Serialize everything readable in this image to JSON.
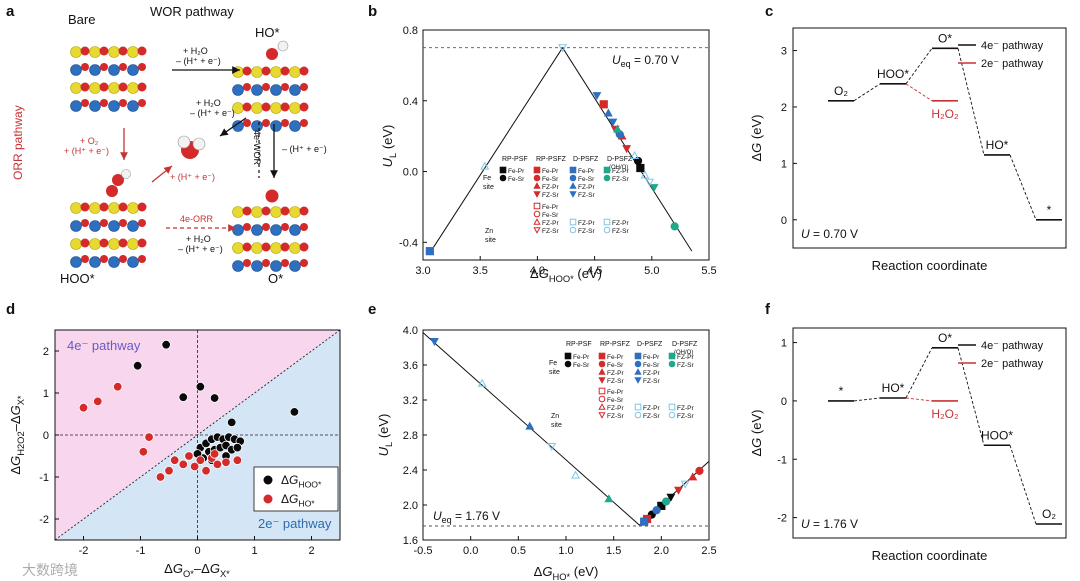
{
  "panel_labels": [
    "a",
    "b",
    "c",
    "d",
    "e",
    "f"
  ],
  "scheme": {
    "title": "WOR pathway",
    "orr_label": "ORR pathway",
    "states": {
      "bare": "Bare",
      "ho": "HO*",
      "hoo": "HOO*",
      "o": "O*"
    },
    "steps": {
      "top": [
        "+ H₂O",
        "– (H⁺ + e⁻)"
      ],
      "mid": [
        "+ H₂O",
        "– (H⁺ + e⁻)"
      ],
      "left": [
        "+ O₂",
        "+ (H⁺ + e⁻)"
      ],
      "diag": "+ (H⁺ + e⁻)",
      "wor4e": "4e-WOR",
      "right": "– (H⁺ + e⁻)",
      "orr4e": "4e-ORR",
      "bottom": [
        "+ H₂O",
        "– (H⁺ + e⁻)"
      ]
    },
    "colors": {
      "blue": "#2e6fc0",
      "yellow": "#e8d832",
      "red": "#d42a2a",
      "white": "#f0f0f0",
      "orr": "#c83232"
    }
  },
  "legend_b": {
    "headers": [
      "RP-PSF",
      "RP-PSFZ",
      "D-PSFZ",
      "D-PSFZ"
    ],
    "sub_header": "(OH/O)",
    "fe_site": [
      "Fe",
      "site"
    ],
    "zn_site": [
      "Zn",
      "site"
    ],
    "rows_fe": [
      [
        "Fe-Pr",
        "Fe-Sr"
      ],
      [
        "Fe-Pr",
        "Fe-Sr",
        "FZ-Pr",
        "FZ-Sr"
      ],
      [
        "Fe-Pr",
        "Fe-Sr",
        "FZ-Pr",
        "FZ-Sr"
      ],
      [
        "FZ-Pr",
        "FZ-Sr"
      ]
    ],
    "rows_zn": [
      [
        "Fe-Pr",
        "Fe-Sr",
        "FZ-Pr",
        "FZ-Sr"
      ],
      [
        "FZ-Pr",
        "FZ-Sr"
      ],
      [
        "FZ-Pr",
        "FZ-Sr"
      ]
    ]
  },
  "legend_d": {
    "entries": [
      "ΔG_HOO*",
      "ΔG_HO*"
    ]
  },
  "legend_cf": {
    "entries": [
      "4e⁻ pathway",
      "2e⁻ pathway"
    ]
  },
  "chart_data": [
    {
      "id": "b",
      "type": "scatter",
      "xlabel": "ΔG_HOO* (eV)",
      "ylabel": "U_L (eV)",
      "xlim": [
        3.0,
        5.5
      ],
      "ylim": [
        -0.5,
        0.8
      ],
      "xticks": [
        3.0,
        3.5,
        4.0,
        4.5,
        5.0,
        5.5
      ],
      "yticks": [
        -0.4,
        0.0,
        0.4,
        0.8
      ],
      "annotation": "U_eq = 0.70 V",
      "ueq": 0.7,
      "volcano": {
        "left": [
          [
            3.06,
            -0.46
          ],
          [
            4.22,
            0.7
          ]
        ],
        "right": [
          [
            4.22,
            0.7
          ],
          [
            5.35,
            -0.45
          ]
        ]
      },
      "series": [
        {
          "name": "RP-PSF",
          "color": "#0a0a0a",
          "points": [
            [
              4.88,
              0.06
            ],
            [
              4.9,
              0.02
            ]
          ]
        },
        {
          "name": "RP-PSFZ",
          "color": "#d42a2a",
          "points": [
            [
              4.58,
              0.38
            ],
            [
              4.68,
              0.24
            ],
            [
              4.74,
              0.2
            ],
            [
              4.78,
              0.13
            ]
          ]
        },
        {
          "name": "D-PSFZ",
          "color": "#2e6fc0",
          "points": [
            [
              4.52,
              0.43
            ],
            [
              4.62,
              0.33
            ],
            [
              4.66,
              0.28
            ],
            [
              4.72,
              0.21
            ],
            [
              3.06,
              -0.45
            ]
          ]
        },
        {
          "name": "D-PSFZ (OH/O)",
          "color": "#1fa88a",
          "points": [
            [
              4.7,
              0.24
            ],
            [
              5.02,
              -0.09
            ],
            [
              5.2,
              -0.31
            ]
          ]
        },
        {
          "name": "Zn site",
          "color": "#7fc6e6",
          "points": [
            [
              3.54,
              0.03
            ],
            [
              4.22,
              0.7
            ],
            [
              4.94,
              -0.02
            ],
            [
              4.98,
              -0.06
            ],
            [
              4.85,
              0.09
            ]
          ]
        }
      ]
    },
    {
      "id": "c",
      "type": "line",
      "xlabel": "Reaction coordinate",
      "ylabel": "ΔG (eV)",
      "ylim": [
        -0.5,
        3.4
      ],
      "yticks": [
        0,
        1,
        2,
        3
      ],
      "annotation": "U = 0.70 V",
      "levels_4e": [
        {
          "label": "O₂",
          "value": 2.11
        },
        {
          "label": "HOO*",
          "value": 2.41
        },
        {
          "label": "O*",
          "value": 3.04
        },
        {
          "label": "HO*",
          "value": 1.15
        },
        {
          "label": "*",
          "value": 0.0
        }
      ],
      "level_2e": {
        "label": "H₂O₂",
        "value": 2.11
      }
    },
    {
      "id": "d",
      "type": "scatter",
      "xlabel": "ΔG_O* – ΔG_X*",
      "ylabel": "ΔG_H2O2 – ΔG_X*",
      "xlim": [
        -2.5,
        2.5
      ],
      "ylim": [
        -2.5,
        2.5
      ],
      "xticks": [
        -2,
        -1,
        0,
        1,
        2
      ],
      "yticks": [
        -2,
        -1,
        0,
        1,
        2
      ],
      "region_labels": [
        "4e⁻ pathway",
        "2e⁻ pathway"
      ],
      "series": [
        {
          "name": "ΔG_HOO*",
          "color": "#0a0a0a",
          "points": [
            [
              -0.55,
              2.15
            ],
            [
              -1.05,
              1.65
            ],
            [
              0.05,
              1.15
            ],
            [
              -0.25,
              0.9
            ],
            [
              0.3,
              0.88
            ],
            [
              0.6,
              0.3
            ],
            [
              1.7,
              0.55
            ],
            [
              0.05,
              -0.3
            ],
            [
              0.15,
              -0.2
            ],
            [
              0.25,
              -0.1
            ],
            [
              0.35,
              -0.05
            ],
            [
              0.45,
              -0.1
            ],
            [
              0.55,
              -0.05
            ],
            [
              0.65,
              -0.1
            ],
            [
              0.75,
              -0.15
            ],
            [
              0.2,
              -0.4
            ],
            [
              0.3,
              -0.35
            ],
            [
              0.4,
              -0.3
            ],
            [
              0.5,
              -0.25
            ],
            [
              0.6,
              -0.35
            ],
            [
              0.7,
              -0.3
            ],
            [
              0.1,
              -0.55
            ],
            [
              0.25,
              -0.6
            ],
            [
              0.5,
              -0.5
            ],
            [
              0.0,
              -0.45
            ]
          ]
        },
        {
          "name": "ΔG_HO*",
          "color": "#d42a2a",
          "points": [
            [
              -2.0,
              0.65
            ],
            [
              -1.4,
              1.15
            ],
            [
              -1.75,
              0.8
            ],
            [
              -0.85,
              -0.05
            ],
            [
              -0.95,
              -0.4
            ],
            [
              -0.5,
              -0.85
            ],
            [
              -0.65,
              -1.0
            ],
            [
              -0.4,
              -0.6
            ],
            [
              -0.25,
              -0.7
            ],
            [
              -0.05,
              -0.75
            ],
            [
              0.05,
              -0.6
            ],
            [
              0.15,
              -0.85
            ],
            [
              0.25,
              -0.55
            ],
            [
              0.35,
              -0.7
            ],
            [
              0.5,
              -0.65
            ],
            [
              0.7,
              -0.6
            ],
            [
              -0.15,
              -0.5
            ],
            [
              0.3,
              -0.45
            ]
          ]
        }
      ]
    },
    {
      "id": "e",
      "type": "scatter",
      "xlabel": "ΔG_HO* (eV)",
      "ylabel": "U_L (eV)",
      "xlim": [
        -0.5,
        2.5
      ],
      "ylim": [
        1.6,
        4.0
      ],
      "xticks": [
        -0.5,
        0.0,
        0.5,
        1.0,
        1.5,
        2.0,
        2.5
      ],
      "yticks": [
        1.6,
        2.0,
        2.4,
        2.8,
        3.2,
        3.6,
        4.0
      ],
      "annotation": "U_eq = 1.76 V",
      "ueq": 1.76,
      "volcano": {
        "left": [
          [
            -0.5,
            3.97
          ],
          [
            1.77,
            1.77
          ]
        ],
        "right": [
          [
            1.77,
            1.77
          ],
          [
            2.5,
            2.5
          ]
        ]
      },
      "series": [
        {
          "name": "RP-PSF",
          "color": "#0a0a0a",
          "points": [
            [
              1.9,
              1.89
            ],
            [
              2.0,
              1.99
            ],
            [
              2.1,
              2.09
            ]
          ]
        },
        {
          "name": "RP-PSFZ",
          "color": "#d42a2a",
          "points": [
            [
              1.85,
              1.84
            ],
            [
              2.18,
              2.17
            ],
            [
              2.33,
              2.32
            ],
            [
              2.4,
              2.39
            ]
          ]
        },
        {
          "name": "D-PSFZ",
          "color": "#2e6fc0",
          "points": [
            [
              -0.38,
              3.87
            ],
            [
              0.62,
              2.9
            ],
            [
              1.95,
              1.94
            ],
            [
              1.82,
              1.81
            ]
          ]
        },
        {
          "name": "D-PSFZ (OH/O)",
          "color": "#1fa88a",
          "points": [
            [
              1.45,
              2.07
            ],
            [
              2.05,
              2.04
            ]
          ]
        },
        {
          "name": "Zn site",
          "color": "#7fc6e6",
          "points": [
            [
              0.12,
              3.39
            ],
            [
              0.85,
              2.67
            ],
            [
              1.1,
              2.34
            ],
            [
              2.25,
              2.24
            ]
          ]
        }
      ]
    },
    {
      "id": "f",
      "type": "line",
      "xlabel": "Reaction coordinate",
      "ylabel": "ΔG (eV)",
      "ylim": [
        -2.35,
        1.25
      ],
      "yticks": [
        -2,
        -1,
        0,
        1
      ],
      "annotation": "U = 1.76 V",
      "levels_4e": [
        {
          "label": "*",
          "value": 0.0
        },
        {
          "label": "HO*",
          "value": 0.05
        },
        {
          "label": "O*",
          "value": 0.91
        },
        {
          "label": "HOO*",
          "value": -0.76
        },
        {
          "label": "O₂",
          "value": -2.11
        }
      ],
      "level_2e": {
        "label": "H₂O₂",
        "value": 0.0
      }
    }
  ],
  "watermark": "大数跨境"
}
